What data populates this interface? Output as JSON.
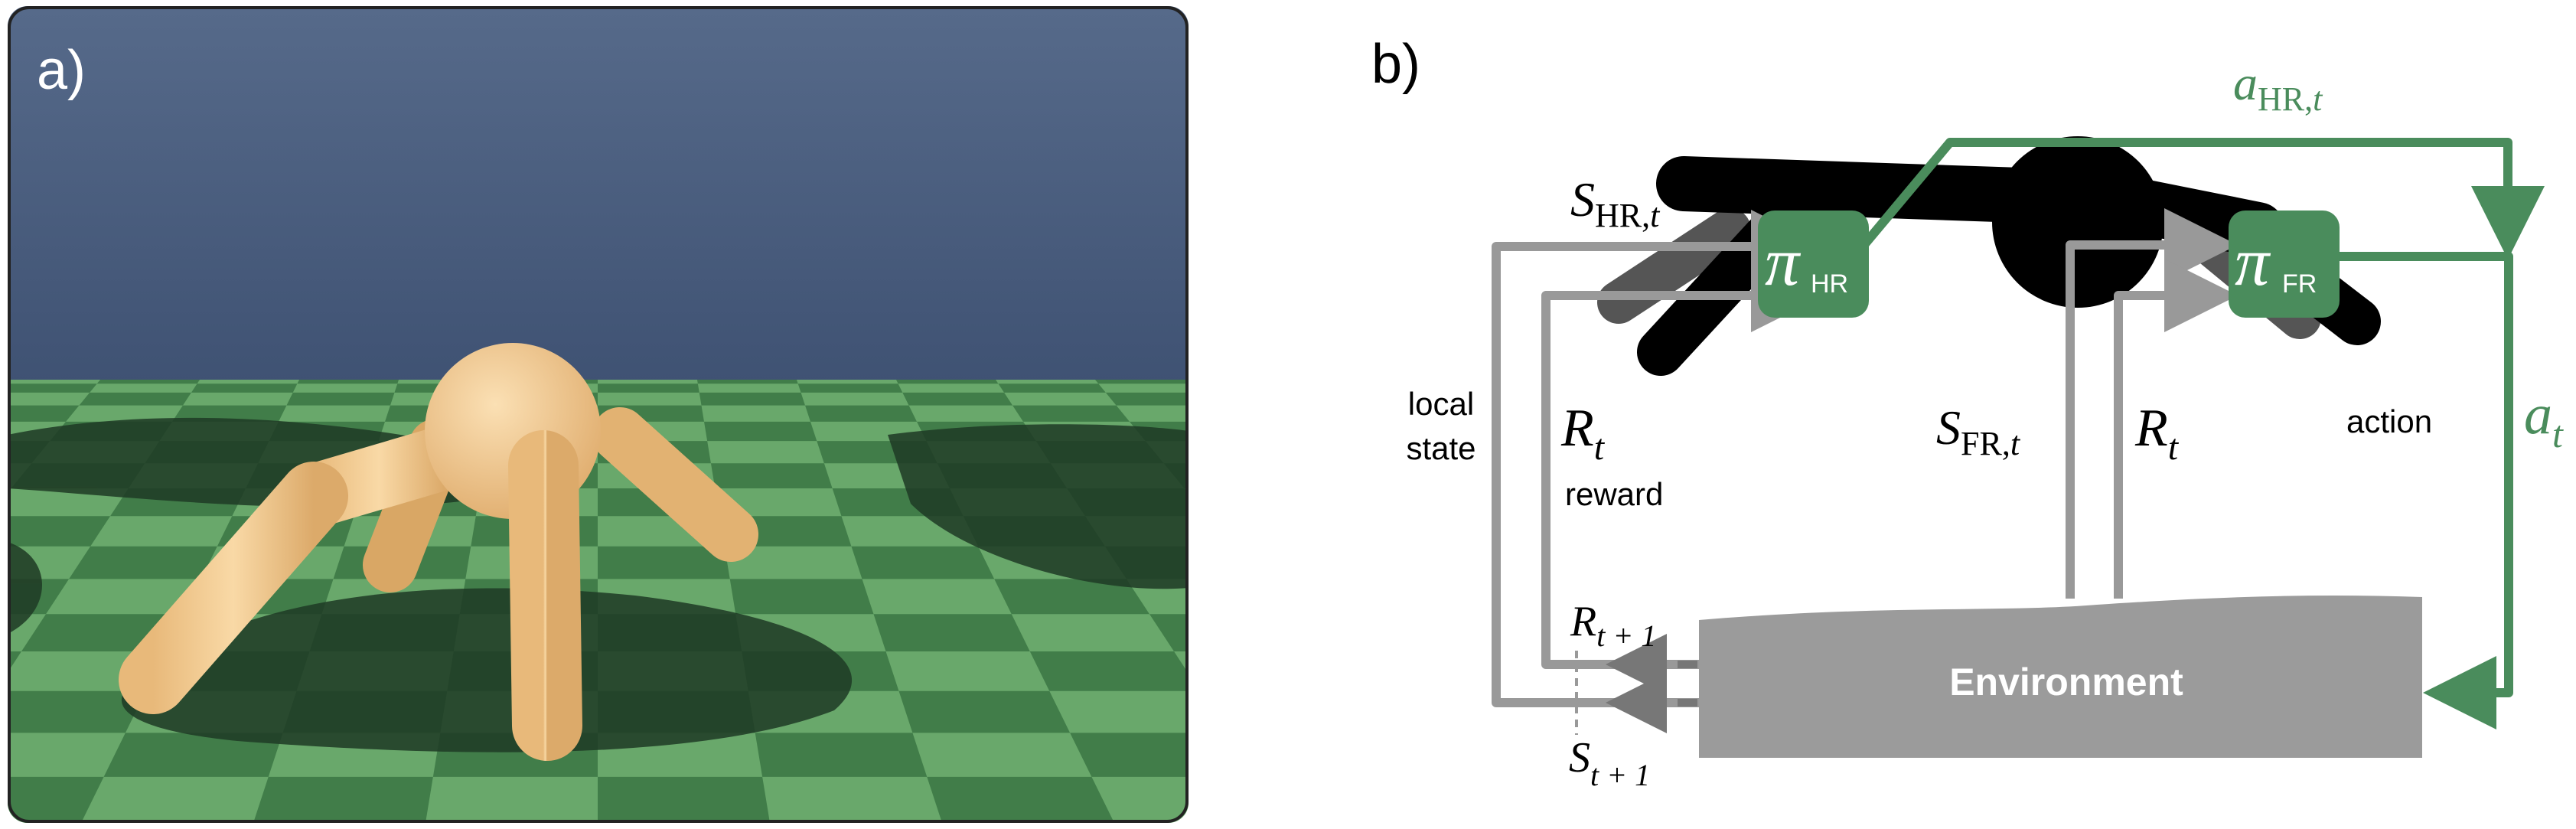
{
  "panel_a": {
    "label": "a)",
    "colors": {
      "sky": "#4b5f80",
      "ground_light": "#69a86b",
      "ground_dark": "#3f7a47",
      "shadow": "#1d3420",
      "robot": "#f2c98e"
    }
  },
  "panel_b": {
    "label": "b)",
    "policy_hr": {
      "symbol": "π",
      "subscript": "HR"
    },
    "policy_fr": {
      "symbol": "π",
      "subscript": "FR"
    },
    "environment_label": "Environment",
    "labels": {
      "s_hr_main": "S",
      "s_hr_sub": "HR,",
      "s_hr_t": "t",
      "a_hr_main": "a",
      "a_hr_sub": "HR,",
      "a_hr_t": "t",
      "s_fr_main": "S",
      "s_fr_sub": "FR,",
      "s_fr_t": "t",
      "r_left_main": "R",
      "r_left_t": "t",
      "r_right_main": "R",
      "r_right_t": "t",
      "a_t_main": "a",
      "a_t_t": "t",
      "r_next_main": "R",
      "r_next_sub": "t + 1",
      "s_next_main": "S",
      "s_next_sub": "t + 1",
      "local_line1": "local",
      "local_line2": "state",
      "reward": "reward",
      "action": "action"
    },
    "colors": {
      "green": "#4a8c5c",
      "gray": "#999999",
      "env": "#9b9b9b",
      "robot": "#000000"
    }
  }
}
